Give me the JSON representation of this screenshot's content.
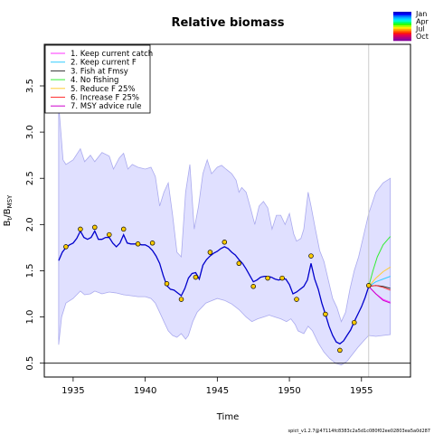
{
  "chart_data": {
    "type": "line",
    "title": "Relative biomass",
    "xlabel": "Time",
    "ylabel": "B_t/B_MSY",
    "xlim": [
      1933,
      1958.4
    ],
    "ylim": [
      0.35,
      3.95
    ],
    "xticks": [
      1935,
      1940,
      1945,
      1950,
      1955
    ],
    "yticks": [
      0.5,
      1.0,
      1.5,
      2.0,
      2.5,
      3.0,
      3.5
    ],
    "xtick_labels": [
      "1935",
      "1940",
      "1945",
      "1950",
      "1955"
    ],
    "ytick_labels": [
      "0.5",
      "1.0",
      "1.5",
      "2.0",
      "2.5",
      "3.0",
      "3.5"
    ],
    "reference_line_y": 0.5,
    "forecast_start": 1955.5,
    "median_color": "#0000cc",
    "band_color": "#e0e0ff",
    "band_edge_color": "#aaaaee",
    "median": {
      "x": [
        1934.0,
        1934.25,
        1934.5,
        1934.75,
        1935.0,
        1935.25,
        1935.5,
        1935.75,
        1936.0,
        1936.25,
        1936.5,
        1936.75,
        1937.0,
        1937.25,
        1937.5,
        1937.75,
        1938.0,
        1938.25,
        1938.5,
        1938.75,
        1939.0,
        1939.25,
        1939.5,
        1939.75,
        1940.0,
        1940.25,
        1940.5,
        1940.75,
        1941.0,
        1941.25,
        1941.5,
        1941.75,
        1942.0,
        1942.25,
        1942.5,
        1942.75,
        1943.0,
        1943.25,
        1943.5,
        1943.75,
        1944.0,
        1944.25,
        1944.5,
        1944.75,
        1945.0,
        1945.25,
        1945.5,
        1945.75,
        1946.0,
        1946.25,
        1946.5,
        1946.75,
        1947.0,
        1947.25,
        1947.5,
        1947.75,
        1948.0,
        1948.25,
        1948.5,
        1948.75,
        1949.0,
        1949.25,
        1949.5,
        1949.75,
        1950.0,
        1950.25,
        1950.5,
        1950.75,
        1951.0,
        1951.25,
        1951.5,
        1951.75,
        1952.0,
        1952.25,
        1952.5,
        1952.75,
        1953.0,
        1953.25,
        1953.5,
        1953.75,
        1954.0,
        1954.25,
        1954.5,
        1954.75,
        1955.0,
        1955.25,
        1955.5
      ],
      "y": [
        1.61,
        1.7,
        1.75,
        1.78,
        1.8,
        1.85,
        1.93,
        1.86,
        1.84,
        1.86,
        1.93,
        1.84,
        1.84,
        1.86,
        1.86,
        1.8,
        1.76,
        1.8,
        1.89,
        1.8,
        1.79,
        1.79,
        1.79,
        1.78,
        1.78,
        1.76,
        1.72,
        1.66,
        1.58,
        1.45,
        1.34,
        1.3,
        1.29,
        1.26,
        1.23,
        1.31,
        1.42,
        1.47,
        1.48,
        1.41,
        1.56,
        1.62,
        1.66,
        1.69,
        1.71,
        1.74,
        1.76,
        1.74,
        1.7,
        1.67,
        1.62,
        1.58,
        1.52,
        1.45,
        1.38,
        1.4,
        1.43,
        1.44,
        1.44,
        1.43,
        1.41,
        1.4,
        1.41,
        1.41,
        1.35,
        1.25,
        1.27,
        1.3,
        1.33,
        1.4,
        1.58,
        1.41,
        1.3,
        1.15,
        1.03,
        0.9,
        0.8,
        0.73,
        0.71,
        0.74,
        0.8,
        0.86,
        0.95,
        1.03,
        1.11,
        1.21,
        1.33
      ]
    },
    "band_upper": {
      "x": [
        1934.0,
        1934.1,
        1934.3,
        1934.5,
        1935.0,
        1935.5,
        1935.8,
        1936.2,
        1936.5,
        1937.0,
        1937.5,
        1937.8,
        1938.2,
        1938.5,
        1938.8,
        1939.1,
        1939.5,
        1940.0,
        1940.4,
        1940.7,
        1941.0,
        1941.3,
        1941.6,
        1941.9,
        1942.2,
        1942.5,
        1942.8,
        1943.1,
        1943.4,
        1943.7,
        1944.0,
        1944.3,
        1944.6,
        1945.0,
        1945.3,
        1945.6,
        1946.0,
        1946.3,
        1946.5,
        1946.7,
        1947.0,
        1947.3,
        1947.6,
        1947.9,
        1948.2,
        1948.5,
        1948.8,
        1949.1,
        1949.4,
        1949.7,
        1950.0,
        1950.3,
        1950.5,
        1950.8,
        1951.0,
        1951.3,
        1951.5,
        1951.8,
        1952.1,
        1952.4,
        1952.7,
        1953.0,
        1953.3,
        1953.6,
        1953.9,
        1954.2,
        1954.5,
        1954.8,
        1955.1,
        1955.5
      ],
      "y": [
        3.3,
        3.1,
        2.7,
        2.65,
        2.7,
        2.82,
        2.68,
        2.75,
        2.68,
        2.78,
        2.74,
        2.6,
        2.72,
        2.77,
        2.6,
        2.65,
        2.62,
        2.6,
        2.62,
        2.52,
        2.2,
        2.35,
        2.45,
        2.1,
        1.7,
        1.65,
        2.35,
        2.65,
        1.95,
        2.2,
        2.55,
        2.7,
        2.55,
        2.62,
        2.64,
        2.6,
        2.55,
        2.48,
        2.35,
        2.4,
        2.35,
        2.18,
        2.0,
        2.2,
        2.25,
        2.18,
        1.95,
        2.1,
        2.1,
        2.0,
        2.12,
        1.9,
        1.82,
        1.85,
        1.95,
        2.35,
        2.2,
        1.95,
        1.72,
        1.6,
        1.4,
        1.2,
        1.1,
        0.95,
        1.05,
        1.3,
        1.5,
        1.65,
        1.85,
        2.12
      ]
    },
    "band_lower": {
      "x": [
        1934.0,
        1934.2,
        1934.5,
        1935.0,
        1935.5,
        1935.8,
        1936.2,
        1936.5,
        1937.0,
        1937.5,
        1938.0,
        1938.5,
        1939.0,
        1939.5,
        1940.0,
        1940.4,
        1940.7,
        1941.0,
        1941.3,
        1941.6,
        1941.9,
        1942.2,
        1942.5,
        1942.8,
        1943.0,
        1943.3,
        1943.6,
        1943.9,
        1944.2,
        1944.5,
        1945.0,
        1945.5,
        1946.0,
        1946.5,
        1947.0,
        1947.4,
        1947.8,
        1948.2,
        1948.6,
        1949.0,
        1949.4,
        1949.8,
        1950.1,
        1950.4,
        1950.6,
        1951.0,
        1951.3,
        1951.6,
        1952.0,
        1952.4,
        1952.8,
        1953.2,
        1953.6,
        1954.0,
        1954.4,
        1954.8,
        1955.2,
        1955.5
      ],
      "y": [
        0.7,
        1.0,
        1.15,
        1.2,
        1.28,
        1.24,
        1.25,
        1.28,
        1.25,
        1.27,
        1.26,
        1.24,
        1.23,
        1.22,
        1.22,
        1.2,
        1.15,
        1.05,
        0.95,
        0.85,
        0.8,
        0.78,
        0.82,
        0.76,
        0.8,
        0.95,
        1.05,
        1.1,
        1.15,
        1.17,
        1.2,
        1.18,
        1.14,
        1.08,
        1.0,
        0.95,
        0.98,
        1.0,
        1.02,
        1.0,
        0.98,
        0.95,
        0.98,
        0.92,
        0.85,
        0.82,
        0.9,
        0.85,
        0.72,
        0.62,
        0.55,
        0.5,
        0.48,
        0.52,
        0.6,
        0.68,
        0.75,
        0.8
      ]
    },
    "forecast_upper": {
      "x": [
        1955.5,
        1956.0,
        1956.5,
        1957.0
      ],
      "y": [
        2.12,
        2.35,
        2.45,
        2.5
      ]
    },
    "forecast_lower": {
      "x": [
        1955.5,
        1956.0,
        1956.5,
        1957.0
      ],
      "y": [
        0.8,
        0.79,
        0.8,
        0.81
      ]
    },
    "observations": {
      "x": [
        1934.5,
        1935.5,
        1936.5,
        1937.5,
        1938.5,
        1939.5,
        1940.5,
        1941.5,
        1942.5,
        1943.5,
        1944.5,
        1945.5,
        1946.5,
        1947.5,
        1948.5,
        1949.5,
        1950.5,
        1951.5,
        1952.5,
        1953.5,
        1954.5,
        1955.5
      ],
      "y": [
        1.76,
        1.95,
        1.97,
        1.89,
        1.95,
        1.79,
        1.8,
        1.36,
        1.19,
        1.43,
        1.7,
        1.81,
        1.58,
        1.33,
        1.42,
        1.42,
        1.19,
        1.66,
        1.03,
        0.64,
        0.94,
        1.34
      ],
      "fill": "#ffcc00",
      "stroke": "#000000"
    },
    "scenarios": [
      {
        "name": "1. Keep current catch",
        "color": "#ff33ff",
        "x": [
          1955.5,
          1956.0,
          1956.5,
          1957.0
        ],
        "y": [
          1.33,
          1.25,
          1.19,
          1.16
        ]
      },
      {
        "name": "2. Keep current F",
        "color": "#33ccff",
        "x": [
          1955.5,
          1956.0,
          1956.5,
          1957.0
        ],
        "y": [
          1.33,
          1.38,
          1.41,
          1.44
        ]
      },
      {
        "name": "3. Fish at Fmsy",
        "color": "#333333",
        "x": [
          1955.5,
          1956.0,
          1956.5,
          1957.0
        ],
        "y": [
          1.33,
          1.34,
          1.33,
          1.31
        ]
      },
      {
        "name": "4. No fishing",
        "color": "#33ee33",
        "x": [
          1955.5,
          1955.8,
          1956.1,
          1956.5,
          1957.0
        ],
        "y": [
          1.33,
          1.5,
          1.65,
          1.78,
          1.87
        ]
      },
      {
        "name": "5. Reduce F 25%",
        "color": "#ffcc33",
        "x": [
          1955.5,
          1956.0,
          1956.5,
          1957.0
        ],
        "y": [
          1.33,
          1.42,
          1.49,
          1.54
        ]
      },
      {
        "name": "6. Increase F 25%",
        "color": "#ff3333",
        "x": [
          1955.5,
          1956.0,
          1956.5,
          1957.0
        ],
        "y": [
          1.33,
          1.34,
          1.32,
          1.29
        ]
      },
      {
        "name": "7. MSY advice rule",
        "color": "#cc00cc",
        "x": [
          1955.5,
          1956.0,
          1956.5,
          1957.0
        ],
        "y": [
          1.33,
          1.25,
          1.18,
          1.15
        ]
      }
    ],
    "season_legend": {
      "labels": [
        "Jan",
        "Apr",
        "Jul",
        "Oct"
      ],
      "colors": [
        "#0000cc",
        "#0000ff",
        "#0066ff",
        "#00aaff",
        "#00ddff",
        "#00ffcc",
        "#00ff66",
        "#33ff00",
        "#aaff00",
        "#ffee00",
        "#ffaa00",
        "#ff6600",
        "#ff2200",
        "#ee0044",
        "#cc0066",
        "#aa0088",
        "#880099"
      ]
    }
  },
  "footer": "spict_v1.2.7@47114fc8383c2a5d1c080f02ee02803ea5a0d287"
}
